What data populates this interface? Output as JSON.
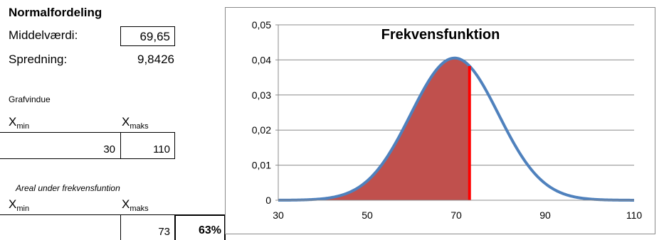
{
  "section_title": "Normalfordeling",
  "params": {
    "mean_label": "Middelværdi:",
    "mean_value": "69,65",
    "sd_label": "Spredning:",
    "sd_value": "9,8426"
  },
  "graph_window": {
    "heading": "Grafvindue",
    "xmin_main": "X",
    "xmin_sub": "min",
    "xmax_main": "X",
    "xmax_sub": "maks",
    "xmin_value": "30",
    "xmax_value": "110"
  },
  "area": {
    "heading": "Areal under frekvensfuntion",
    "xmin_main": "X",
    "xmin_sub": "min",
    "xmax_main": "X",
    "xmax_sub": "maks",
    "xmax_value": "73",
    "result": "63%"
  },
  "colors": {
    "curve": "#4f81bd",
    "fill": "#c0504d",
    "cutoff": "#ff0000",
    "grid": "#8c8c8c"
  },
  "chart_data": {
    "type": "area",
    "title": "Frekvensfunktion",
    "mean": 69.65,
    "sd": 9.8426,
    "xlim": [
      30,
      110
    ],
    "ylim": [
      0,
      0.05
    ],
    "x_ticks": [
      30,
      50,
      70,
      90,
      110
    ],
    "x_tick_labels": [
      "30",
      "50",
      "70",
      "90",
      "110"
    ],
    "y_ticks": [
      0,
      0.01,
      0.02,
      0.03,
      0.04,
      0.05
    ],
    "y_tick_labels": [
      "0",
      "0,01",
      "0,02",
      "0,03",
      "0,04",
      "0,05"
    ],
    "shaded_from": 30,
    "shaded_to": 73,
    "grid": true,
    "legend": "none"
  }
}
